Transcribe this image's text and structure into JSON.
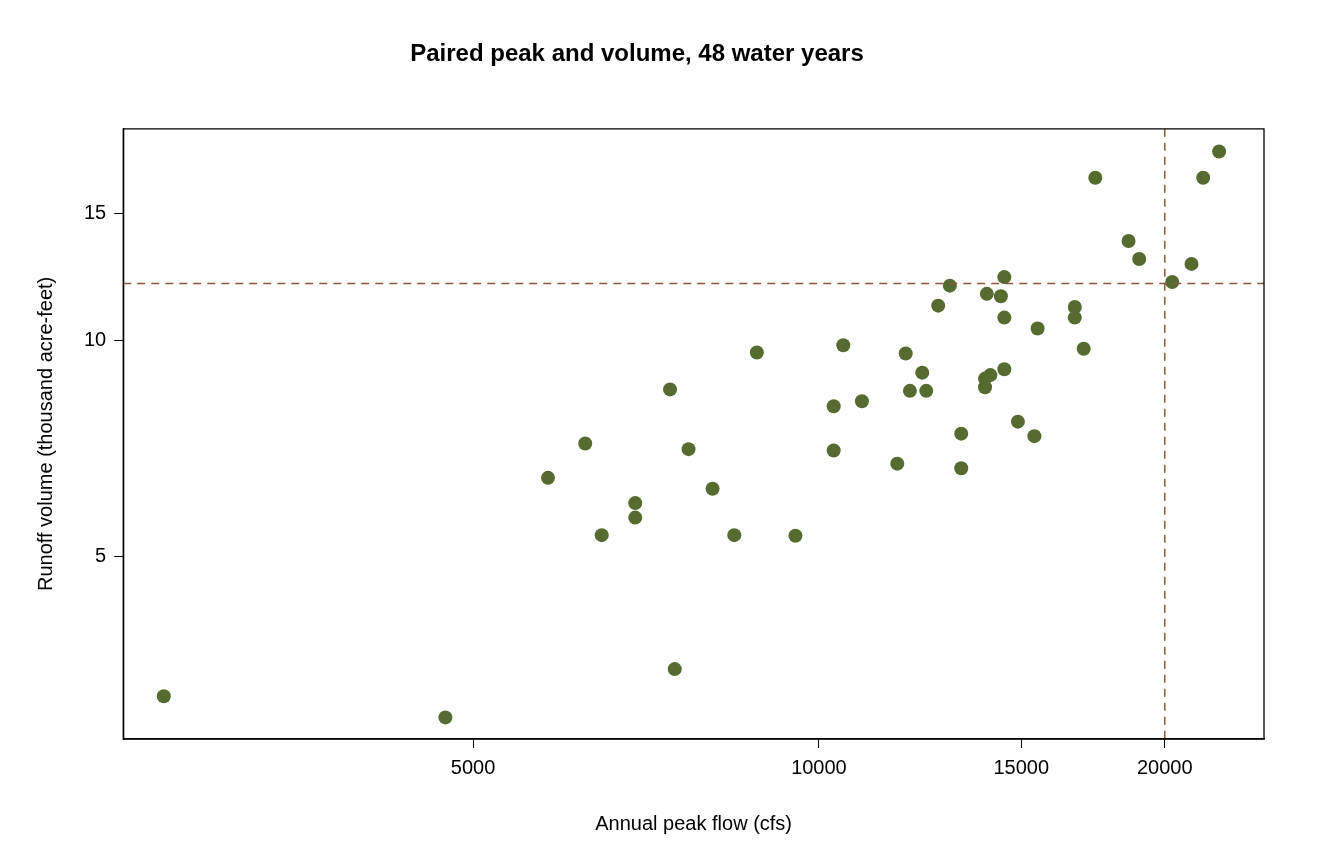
{
  "chart_data": {
    "type": "scatter",
    "title": "Paired peak and volume, 48 water years",
    "xlabel": "Annual peak flow (cfs)",
    "ylabel": "Runoff volume (thousand acre-feet)",
    "log": "xy",
    "grid": false,
    "legend": false,
    "marker": "circle",
    "xlim": [
      2480,
      24400
    ],
    "ylim": [
      2.79,
      19.7
    ],
    "xticks": [
      5000,
      10000,
      15000,
      20000
    ],
    "yticks": [
      5,
      10,
      15
    ],
    "ref_lines": [
      {
        "axis": "x",
        "value": 20000,
        "color": "#8b5a3c",
        "line_style": "dashed"
      },
      {
        "axis": "y",
        "value": 12,
        "color": "#8b5a3c",
        "line_style": "dashed"
      }
    ],
    "series": [
      {
        "color": "#556b2f",
        "x": [
          2690,
          4730,
          5810,
          6260,
          6470,
          6920,
          6920,
          7420,
          7490,
          7700,
          8080,
          8440,
          8830,
          9540,
          10300,
          10300,
          10500,
          10900,
          11700,
          11900,
          12000,
          12300,
          12400,
          12700,
          13000,
          13300,
          13300,
          13950,
          14100,
          13950,
          14500,
          14000,
          14400,
          14500,
          14500,
          14900,
          15400,
          15500,
          16700,
          16700,
          17000,
          17400,
          18600,
          19000,
          20300,
          21100,
          21600,
          22300
        ],
        "values": [
          3.2,
          2.99,
          6.44,
          7.19,
          5.36,
          5.94,
          5.67,
          8.55,
          3.49,
          7.06,
          6.22,
          5.36,
          9.62,
          5.35,
          8.1,
          7.03,
          9.85,
          8.23,
          6.74,
          9.59,
          8.51,
          9.02,
          8.51,
          11.18,
          11.92,
          7.42,
          6.64,
          8.61,
          8.95,
          8.85,
          9.12,
          11.61,
          11.52,
          12.25,
          10.76,
          7.71,
          7.36,
          10.39,
          11.13,
          10.76,
          9.74,
          16.84,
          13.75,
          12.98,
          12.06,
          12.78,
          16.84,
          18.32
        ]
      }
    ]
  }
}
